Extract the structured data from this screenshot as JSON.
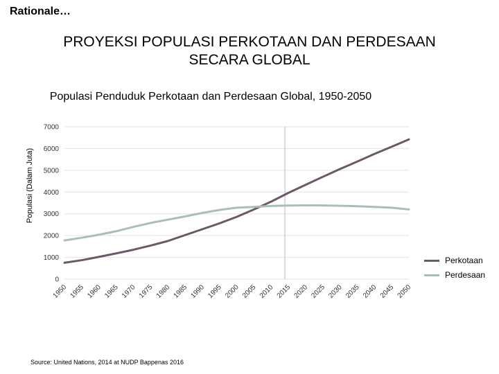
{
  "header": "Rationale…",
  "title_line1": "PROYEKSI POPULASI PERKOTAAN DAN PERDESAAN",
  "title_line2": "SECARA GLOBAL",
  "source": "Source: United Nations, 2014 at NUDP Bappenas 2016",
  "colors": {
    "urban": "#6b5868",
    "rural": "#a9bfb5",
    "grid": "#e2e2e2",
    "marker": "#b8b8b8"
  },
  "chart_data": {
    "type": "line",
    "title": "Populasi Penduduk Perkotaan dan Perdesaan Global, 1950-2050",
    "xlabel": "",
    "ylabel": "Populasi (Dalam Juta)",
    "ylim": [
      0,
      7000
    ],
    "yticks": [
      "0",
      "1000",
      "2000",
      "3000",
      "4000",
      "5000",
      "6000",
      "7000"
    ],
    "grid": true,
    "legend_position": "bottom-right",
    "x": [
      1950,
      1955,
      1960,
      1965,
      1970,
      1975,
      1980,
      1985,
      1990,
      1995,
      2000,
      2005,
      2010,
      2015,
      2020,
      2025,
      2030,
      2035,
      2040,
      2045,
      2050
    ],
    "marker_line_x": 2014,
    "series": [
      {
        "name": "Perkotaan",
        "color_key": "urban",
        "values": [
          750,
          870,
          1020,
          1180,
          1350,
          1540,
          1750,
          2020,
          2290,
          2560,
          2860,
          3200,
          3560,
          3960,
          4330,
          4700,
          5060,
          5400,
          5750,
          6080,
          6420
        ]
      },
      {
        "name": "Perdesaan",
        "color_key": "rural",
        "values": [
          1780,
          1900,
          2040,
          2200,
          2400,
          2580,
          2730,
          2880,
          3040,
          3180,
          3280,
          3320,
          3360,
          3380,
          3390,
          3385,
          3370,
          3350,
          3320,
          3280,
          3200
        ]
      }
    ]
  }
}
